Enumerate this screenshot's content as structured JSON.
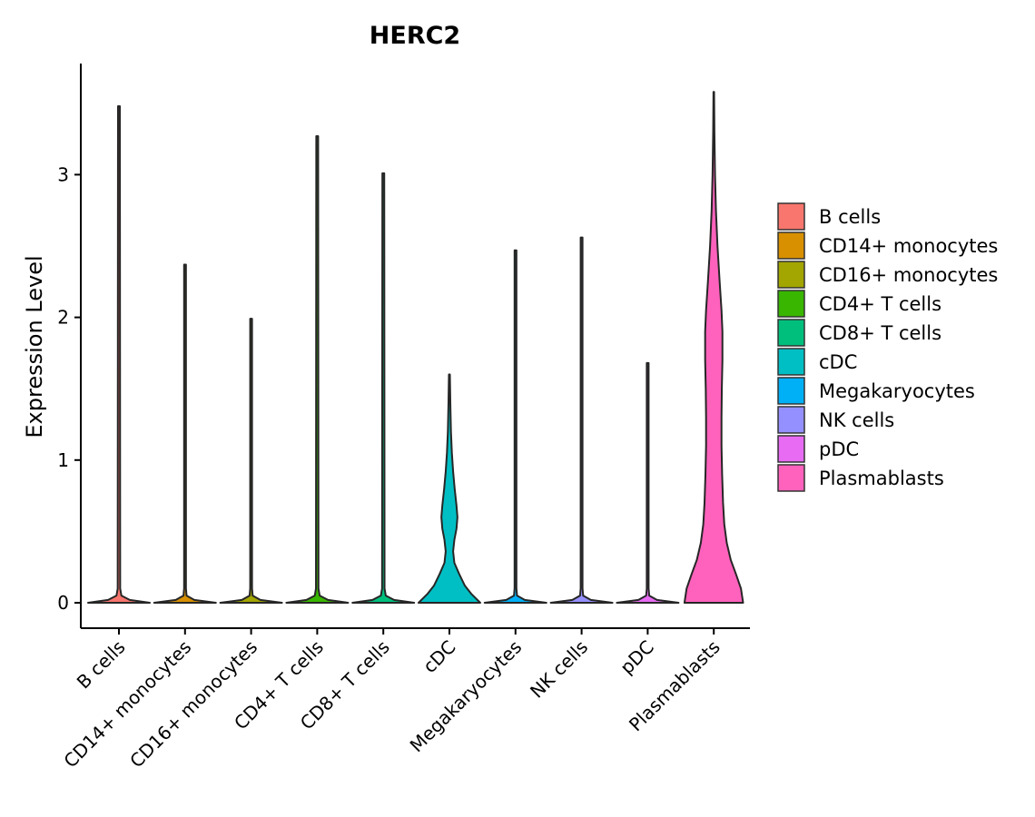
{
  "chart_data": {
    "type": "violin",
    "title": "HERC2",
    "xlabel": "",
    "ylabel": "Expression Level",
    "ylim": [
      -0.18,
      3.78
    ],
    "yticks": [
      0,
      1,
      2,
      3
    ],
    "grid": false,
    "legend_position": "right",
    "categories": [
      "B cells",
      "CD14+ monocytes",
      "CD16+ monocytes",
      "CD4+ T cells",
      "CD8+ T cells",
      "cDC",
      "Megakaryocytes",
      "NK cells",
      "pDC",
      "Plasmablasts"
    ],
    "series": [
      {
        "name": "B cells",
        "color": "#F8766D",
        "max": 3.48,
        "density": [
          [
            0,
            1.0
          ],
          [
            0.02,
            0.35
          ],
          [
            0.05,
            0.08
          ],
          [
            0.1,
            0.04
          ],
          [
            3.48,
            0.03
          ]
        ]
      },
      {
        "name": "CD14+ monocytes",
        "color": "#D89000",
        "max": 2.37,
        "density": [
          [
            0,
            1.0
          ],
          [
            0.02,
            0.3
          ],
          [
            0.05,
            0.05
          ],
          [
            0.1,
            0.03
          ],
          [
            2.37,
            0.03
          ]
        ]
      },
      {
        "name": "CD16+ monocytes",
        "color": "#A3A500",
        "max": 1.99,
        "density": [
          [
            0,
            1.0
          ],
          [
            0.02,
            0.3
          ],
          [
            0.05,
            0.05
          ],
          [
            0.1,
            0.03
          ],
          [
            1.99,
            0.03
          ]
        ]
      },
      {
        "name": "CD4+ T cells",
        "color": "#39B600",
        "max": 3.27,
        "density": [
          [
            0,
            1.0
          ],
          [
            0.02,
            0.35
          ],
          [
            0.05,
            0.08
          ],
          [
            0.1,
            0.04
          ],
          [
            3.27,
            0.03
          ]
        ]
      },
      {
        "name": "CD8+ T cells",
        "color": "#00BF7D",
        "max": 3.01,
        "density": [
          [
            0,
            1.0
          ],
          [
            0.02,
            0.35
          ],
          [
            0.05,
            0.08
          ],
          [
            0.1,
            0.04
          ],
          [
            3.01,
            0.03
          ]
        ]
      },
      {
        "name": "cDC",
        "color": "#00BFC4",
        "max": 1.6,
        "density": [
          [
            0,
            1.0
          ],
          [
            0.06,
            0.72
          ],
          [
            0.12,
            0.5
          ],
          [
            0.2,
            0.32
          ],
          [
            0.28,
            0.16
          ],
          [
            0.36,
            0.12
          ],
          [
            0.44,
            0.16
          ],
          [
            0.52,
            0.23
          ],
          [
            0.6,
            0.26
          ],
          [
            0.68,
            0.23
          ],
          [
            0.8,
            0.17
          ],
          [
            0.92,
            0.12
          ],
          [
            1.05,
            0.08
          ],
          [
            1.2,
            0.05
          ],
          [
            1.4,
            0.03
          ],
          [
            1.6,
            0.015
          ]
        ]
      },
      {
        "name": "Megakaryocytes",
        "color": "#00B0F6",
        "max": 2.47,
        "density": [
          [
            0,
            1.0
          ],
          [
            0.02,
            0.3
          ],
          [
            0.05,
            0.05
          ],
          [
            0.1,
            0.03
          ],
          [
            2.47,
            0.03
          ]
        ]
      },
      {
        "name": "NK cells",
        "color": "#9590FF",
        "max": 2.56,
        "density": [
          [
            0,
            1.0
          ],
          [
            0.02,
            0.3
          ],
          [
            0.05,
            0.05
          ],
          [
            0.1,
            0.03
          ],
          [
            2.56,
            0.03
          ]
        ]
      },
      {
        "name": "pDC",
        "color": "#E76BF3",
        "max": 1.68,
        "density": [
          [
            0,
            1.0
          ],
          [
            0.02,
            0.3
          ],
          [
            0.05,
            0.05
          ],
          [
            0.1,
            0.03
          ],
          [
            1.68,
            0.03
          ]
        ]
      },
      {
        "name": "Plasmablasts",
        "color": "#FF62BC",
        "max": 3.58,
        "density": [
          [
            0,
            0.95
          ],
          [
            0.1,
            0.88
          ],
          [
            0.2,
            0.72
          ],
          [
            0.3,
            0.55
          ],
          [
            0.42,
            0.42
          ],
          [
            0.55,
            0.34
          ],
          [
            0.7,
            0.3
          ],
          [
            0.9,
            0.27
          ],
          [
            1.1,
            0.25
          ],
          [
            1.3,
            0.25
          ],
          [
            1.5,
            0.26
          ],
          [
            1.7,
            0.28
          ],
          [
            1.9,
            0.28
          ],
          [
            2.05,
            0.25
          ],
          [
            2.25,
            0.19
          ],
          [
            2.5,
            0.12
          ],
          [
            2.75,
            0.07
          ],
          [
            3.0,
            0.04
          ],
          [
            3.3,
            0.02
          ],
          [
            3.58,
            0.01
          ]
        ]
      }
    ]
  }
}
